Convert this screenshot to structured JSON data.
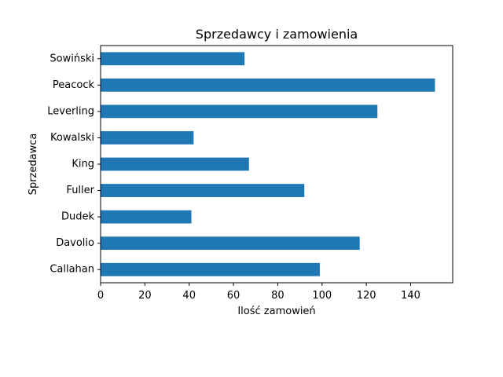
{
  "chart_data": {
    "type": "bar",
    "orientation": "horizontal",
    "title": "Sprzedawcy i zamowienia",
    "xlabel": "Ilość zamowień",
    "ylabel": "Sprzedawca",
    "categories": [
      "Callahan",
      "Davolio",
      "Dudek",
      "Fuller",
      "King",
      "Kowalski",
      "Leverling",
      "Peacock",
      "Sowiński"
    ],
    "values": [
      99,
      117,
      41,
      92,
      67,
      42,
      125,
      151,
      65
    ],
    "xlim": [
      0,
      159
    ],
    "xticks": [
      0,
      20,
      40,
      60,
      80,
      100,
      120,
      140
    ],
    "grid": false,
    "legend": "none",
    "bar_color": "#1f77b4"
  }
}
